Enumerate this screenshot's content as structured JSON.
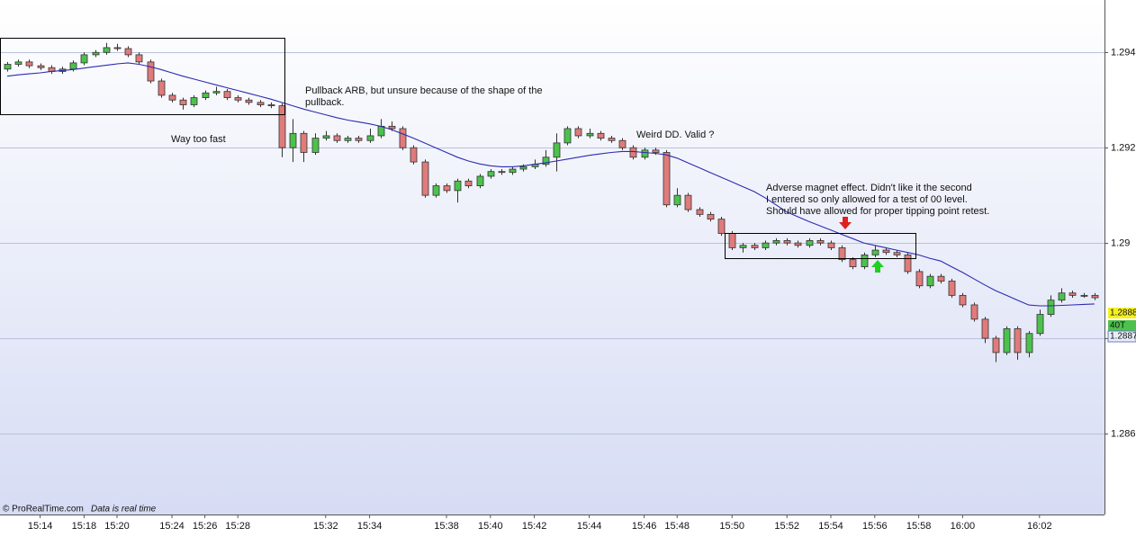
{
  "chart_data": {
    "type": "candlestick",
    "categories": [
      null,
      null,
      null,
      "15:14",
      null,
      null,
      null,
      "15:18",
      null,
      null,
      "15:20",
      null,
      null,
      null,
      null,
      "15:24",
      null,
      null,
      "15:26",
      null,
      null,
      "15:28",
      null,
      null,
      null,
      null,
      null,
      null,
      null,
      "15:32",
      null,
      null,
      null,
      "15:34",
      null,
      null,
      null,
      null,
      null,
      null,
      "15:38",
      null,
      null,
      null,
      "15:40",
      null,
      null,
      null,
      "15:42",
      null,
      null,
      null,
      null,
      "15:44",
      null,
      null,
      null,
      null,
      "15:46",
      null,
      null,
      "15:48",
      null,
      null,
      null,
      null,
      "15:50",
      null,
      null,
      null,
      null,
      "15:52",
      null,
      null,
      null,
      "15:54",
      null,
      null,
      null,
      "15:56",
      null,
      null,
      null,
      "15:58",
      null,
      null,
      null,
      "16:00",
      null,
      null,
      null,
      null,
      null,
      null,
      "16:02",
      null,
      null,
      null,
      null,
      null
    ],
    "open": [
      1.29365,
      1.29375,
      1.2938,
      1.29372,
      1.29368,
      1.2936,
      1.29365,
      1.29378,
      1.29395,
      1.294,
      1.2941,
      1.29408,
      1.29395,
      1.2938,
      1.2934,
      1.2931,
      1.293,
      1.2929,
      1.29305,
      1.29315,
      1.29318,
      1.29305,
      1.293,
      1.29295,
      1.2929,
      1.29288,
      1.292,
      1.2923,
      1.2919,
      1.2922,
      1.29225,
      1.29215,
      1.2922,
      1.29215,
      1.29225,
      1.29245,
      1.2924,
      1.292,
      1.2917,
      1.291,
      1.2912,
      1.2911,
      1.2913,
      1.2912,
      1.2914,
      1.2915,
      1.29148,
      1.29155,
      1.2916,
      1.29165,
      1.2918,
      1.2921,
      1.2924,
      1.29225,
      1.2923,
      1.2922,
      1.29215,
      1.292,
      1.2918,
      1.29195,
      1.2919,
      1.2908,
      1.291,
      1.2907,
      1.2906,
      1.2905,
      1.2902,
      1.2899,
      1.28995,
      1.2899,
      1.29,
      1.29005,
      1.29,
      1.28995,
      1.29005,
      1.29,
      1.2899,
      1.28965,
      1.2895,
      1.28975,
      1.28985,
      1.2898,
      1.28975,
      1.2894,
      1.2891,
      1.2893,
      1.2892,
      1.2889,
      1.2887,
      1.2884,
      1.288,
      1.2877,
      1.2882,
      1.2877,
      1.2881,
      1.2885,
      1.2888,
      1.28895,
      1.2889,
      1.2889
    ],
    "high": [
      1.2938,
      1.29385,
      1.29385,
      1.29377,
      1.29373,
      1.2937,
      1.29383,
      1.294,
      1.29405,
      1.2942,
      1.29418,
      1.29413,
      1.294,
      1.29385,
      1.29345,
      1.29315,
      1.29305,
      1.2931,
      1.2932,
      1.29328,
      1.29323,
      1.2931,
      1.29305,
      1.293,
      1.29295,
      1.29293,
      1.2926,
      1.29235,
      1.2923,
      1.29235,
      1.2923,
      1.29225,
      1.29225,
      1.2924,
      1.2926,
      1.29255,
      1.29245,
      1.29205,
      1.29175,
      1.29125,
      1.29125,
      1.29135,
      1.29135,
      1.29145,
      1.29155,
      1.29155,
      1.2916,
      1.29165,
      1.29175,
      1.29195,
      1.2923,
      1.29245,
      1.29245,
      1.2924,
      1.29235,
      1.29225,
      1.2922,
      1.29205,
      1.292,
      1.292,
      1.29195,
      1.29115,
      1.29105,
      1.29075,
      1.29065,
      1.29055,
      1.29025,
      1.29,
      1.29,
      1.29005,
      1.2901,
      1.2901,
      1.29005,
      1.2901,
      1.2901,
      1.29005,
      1.28995,
      1.2897,
      1.2898,
      1.28995,
      1.2899,
      1.28985,
      1.2898,
      1.28945,
      1.28935,
      1.28935,
      1.28925,
      1.28895,
      1.28875,
      1.28845,
      1.28805,
      1.28825,
      1.28825,
      1.28815,
      1.2886,
      1.2889,
      1.28905,
      1.289,
      1.28895,
      1.28895
    ],
    "low": [
      1.2936,
      1.2937,
      1.29367,
      1.29363,
      1.29355,
      1.29355,
      1.2936,
      1.29373,
      1.2939,
      1.29395,
      1.29403,
      1.2939,
      1.29375,
      1.29335,
      1.29305,
      1.29295,
      1.2928,
      1.29285,
      1.293,
      1.2931,
      1.293,
      1.29295,
      1.2929,
      1.29285,
      1.29283,
      1.2918,
      1.2917,
      1.2917,
      1.29185,
      1.29215,
      1.2921,
      1.2921,
      1.2921,
      1.2921,
      1.2922,
      1.29235,
      1.29195,
      1.29165,
      1.29095,
      1.29095,
      1.29105,
      1.29085,
      1.29115,
      1.29115,
      1.29135,
      1.29143,
      1.29143,
      1.2915,
      1.29155,
      1.2916,
      1.2915,
      1.29205,
      1.2922,
      1.2922,
      1.29215,
      1.2921,
      1.29195,
      1.29175,
      1.29175,
      1.29185,
      1.29075,
      1.29075,
      1.29065,
      1.29055,
      1.29045,
      1.29015,
      1.28985,
      1.2898,
      1.28985,
      1.28985,
      1.28995,
      1.28995,
      1.2899,
      1.2899,
      1.28995,
      1.28985,
      1.2896,
      1.28945,
      1.28945,
      1.2897,
      1.28975,
      1.2897,
      1.28935,
      1.28905,
      1.28905,
      1.28915,
      1.28885,
      1.28865,
      1.28835,
      1.2879,
      1.2875,
      1.28765,
      1.28755,
      1.2876,
      1.28805,
      1.28845,
      1.28875,
      1.28885,
      1.28885,
      1.2888
    ],
    "close": [
      1.29375,
      1.2938,
      1.29372,
      1.29368,
      1.2936,
      1.29365,
      1.29378,
      1.29395,
      1.294,
      1.2941,
      1.29408,
      1.29395,
      1.2938,
      1.2934,
      1.2931,
      1.293,
      1.2929,
      1.29305,
      1.29315,
      1.29318,
      1.29305,
      1.293,
      1.29295,
      1.2929,
      1.29288,
      1.292,
      1.2923,
      1.2919,
      1.2922,
      1.29225,
      1.29215,
      1.2922,
      1.29215,
      1.29225,
      1.29245,
      1.2924,
      1.292,
      1.2917,
      1.291,
      1.2912,
      1.2911,
      1.2913,
      1.2912,
      1.2914,
      1.2915,
      1.29148,
      1.29155,
      1.2916,
      1.29165,
      1.2918,
      1.2921,
      1.2924,
      1.29225,
      1.2923,
      1.2922,
      1.29215,
      1.292,
      1.2918,
      1.29195,
      1.2919,
      1.2908,
      1.291,
      1.2907,
      1.2906,
      1.2905,
      1.2902,
      1.2899,
      1.28995,
      1.2899,
      1.29,
      1.29005,
      1.29,
      1.28995,
      1.29005,
      1.29,
      1.2899,
      1.28965,
      1.2895,
      1.28975,
      1.28985,
      1.2898,
      1.28975,
      1.2894,
      1.2891,
      1.2893,
      1.2892,
      1.2889,
      1.2887,
      1.2884,
      1.288,
      1.2877,
      1.2882,
      1.2877,
      1.2881,
      1.2885,
      1.2888,
      1.28895,
      1.2889,
      1.2889,
      1.28885
    ],
    "up_color": "#4cc24c",
    "down_color": "#e07b7b",
    "ma": {
      "color": "#2b2bb0",
      "values": [
        1.2935,
        1.29353,
        1.29355,
        1.29357,
        1.2936,
        1.29362,
        1.29364,
        1.29367,
        1.2937,
        1.29373,
        1.29376,
        1.29378,
        1.29375,
        1.2937,
        1.29364,
        1.29357,
        1.2935,
        1.29344,
        1.29338,
        1.29332,
        1.29326,
        1.2932,
        1.29314,
        1.29308,
        1.29302,
        1.29295,
        1.29288,
        1.29281,
        1.29275,
        1.29269,
        1.29263,
        1.29258,
        1.29254,
        1.2925,
        1.29245,
        1.29238,
        1.29229,
        1.2922,
        1.2921,
        1.292,
        1.2919,
        1.2918,
        1.29172,
        1.29166,
        1.29162,
        1.2916,
        1.2916,
        1.29162,
        1.29165,
        1.29168,
        1.29172,
        1.29176,
        1.2918,
        1.29184,
        1.29187,
        1.2919,
        1.29192,
        1.29192,
        1.2919,
        1.29188,
        1.29185,
        1.29178,
        1.29168,
        1.29158,
        1.29148,
        1.29138,
        1.29128,
        1.29118,
        1.29108,
        1.29095,
        1.2908,
        1.29065,
        1.29055,
        1.29045,
        1.29036,
        1.29027,
        1.29018,
        1.29009,
        1.29,
        1.28995,
        1.2899,
        1.28985,
        1.2898,
        1.28975,
        1.28968,
        1.28962,
        1.2895,
        1.28938,
        1.28925,
        1.28912,
        1.289,
        1.2889,
        1.2888,
        1.2887,
        1.28868,
        1.28868,
        1.28869,
        1.2887,
        1.28871,
        1.28872
      ]
    },
    "ylim": [
      1.2843,
      1.2951
    ],
    "yticks": [
      1.286,
      1.288,
      1.29,
      1.292,
      1.294
    ],
    "grid": true,
    "annotations": [
      {
        "lines": [
          "Pullback ARB, but unsure because of the shape of the",
          "pullback."
        ]
      },
      {
        "lines": [
          "Way too fast"
        ]
      },
      {
        "lines": [
          "Weird DD. Valid ?"
        ]
      },
      {
        "lines": [
          "Adverse magnet effect. Didn't like it the second",
          "I entered so only allowed for a test of 00 level.",
          "Should have allowed for proper tipping point retest."
        ]
      }
    ],
    "price_tags": [
      "1.2888",
      "40T",
      "1.2887"
    ],
    "footer": {
      "brand": "© ProRealTime.com",
      "note": "Data is real time"
    }
  }
}
